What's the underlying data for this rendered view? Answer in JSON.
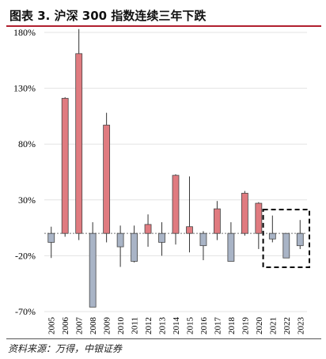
{
  "title": "图表 3. 沪深 300 指数连续三年下跌",
  "source": "资料来源：万得，中银证券",
  "colors": {
    "up": "#e07b80",
    "down": "#a9b4c6",
    "wick": "#333333",
    "grid": "#e3e3e3",
    "accent": "#b01f2e"
  },
  "chart_data": {
    "type": "bar",
    "subtype": "candlestick-style annual return with intra-year range",
    "title": "",
    "xlabel": "",
    "ylabel": "",
    "ylim": [
      -70,
      180
    ],
    "y_ticks": [
      "180%",
      "130%",
      "80%",
      "30%",
      "-20%",
      "-70%"
    ],
    "y_tick_values": [
      180,
      130,
      80,
      30,
      -20,
      -70
    ],
    "categories": [
      "2005",
      "2006",
      "2007",
      "2008",
      "2009",
      "2010",
      "2011",
      "2012",
      "2013",
      "2014",
      "2015",
      "2016",
      "2017",
      "2018",
      "2019",
      "2020",
      "2021",
      "2022",
      "2023"
    ],
    "open": [
      0,
      0,
      0,
      0,
      0,
      0,
      0,
      0,
      0,
      0,
      0,
      0,
      0,
      0,
      0,
      0,
      0,
      0,
      0
    ],
    "close": [
      -8,
      121,
      161,
      -66,
      97,
      -12,
      -25,
      8,
      -8,
      52,
      6,
      -11,
      22,
      -25,
      36,
      27,
      -5,
      -22,
      -11
    ],
    "high": [
      6,
      122,
      183,
      10,
      108,
      7,
      7,
      17,
      10,
      53,
      51,
      2,
      29,
      10,
      38,
      28,
      16,
      -1,
      12
    ],
    "low": [
      -22,
      -3,
      -6,
      -66,
      -8,
      -30,
      -26,
      -12,
      -20,
      -10,
      -17,
      -24,
      -6,
      -25,
      -2,
      -14,
      -8,
      -22,
      -14
    ],
    "highlight_range": [
      "2021",
      "2023"
    ]
  }
}
